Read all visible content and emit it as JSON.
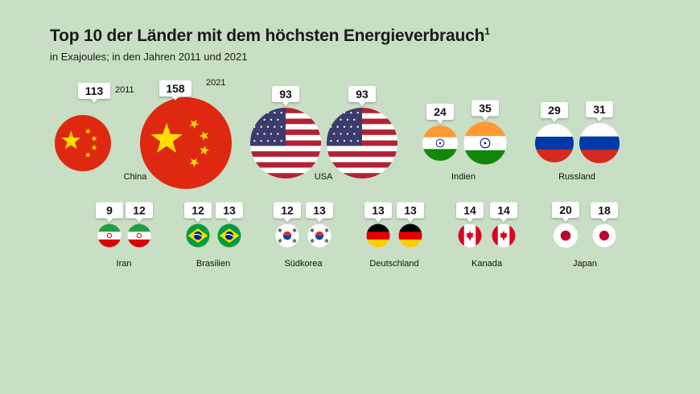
{
  "title": "Top 10 der Länder mit dem höchsten Energieverbrauch",
  "title_footnote": "1",
  "subtitle": "in Exajoules; in den Jahren 2011 und 2021",
  "chart_data": {
    "type": "bubble",
    "unit": "Exajoules",
    "years": [
      "2011",
      "2021"
    ],
    "series": [
      {
        "name": "2011",
        "values": [
          113,
          93,
          24,
          29,
          9,
          12,
          12,
          13,
          14,
          20
        ]
      },
      {
        "name": "2021",
        "values": [
          158,
          93,
          35,
          31,
          12,
          13,
          13,
          13,
          14,
          18
        ]
      }
    ],
    "categories": [
      "China",
      "USA",
      "Indien",
      "Russland",
      "Iran",
      "Brasilien",
      "Südkorea",
      "Deutschland",
      "Kanada",
      "Japan"
    ],
    "flags": [
      "china-flag",
      "usa-flag",
      "india-flag",
      "russia-flag",
      "iran-flag",
      "brazil-flag",
      "south-korea-flag",
      "germany-flag",
      "canada-flag",
      "japan-flag"
    ]
  },
  "colors": {
    "background": "#c9dfc5",
    "china_red": "#de2910",
    "china_yellow": "#ffde00",
    "usa_red": "#b22234",
    "usa_blue": "#3c3b6e",
    "india_saffron": "#ff9933",
    "india_green": "#138808",
    "russia_blue": "#0039a6",
    "russia_red": "#d52b1e",
    "iran_green": "#239f40",
    "iran_red": "#da0000",
    "brazil_green": "#009c3b",
    "brazil_yellow": "#ffdf00",
    "brazil_blue": "#002776",
    "germany_red": "#dd0000",
    "germany_gold": "#ffce00",
    "canada_red": "#d80621",
    "japan_red": "#bc002d"
  }
}
